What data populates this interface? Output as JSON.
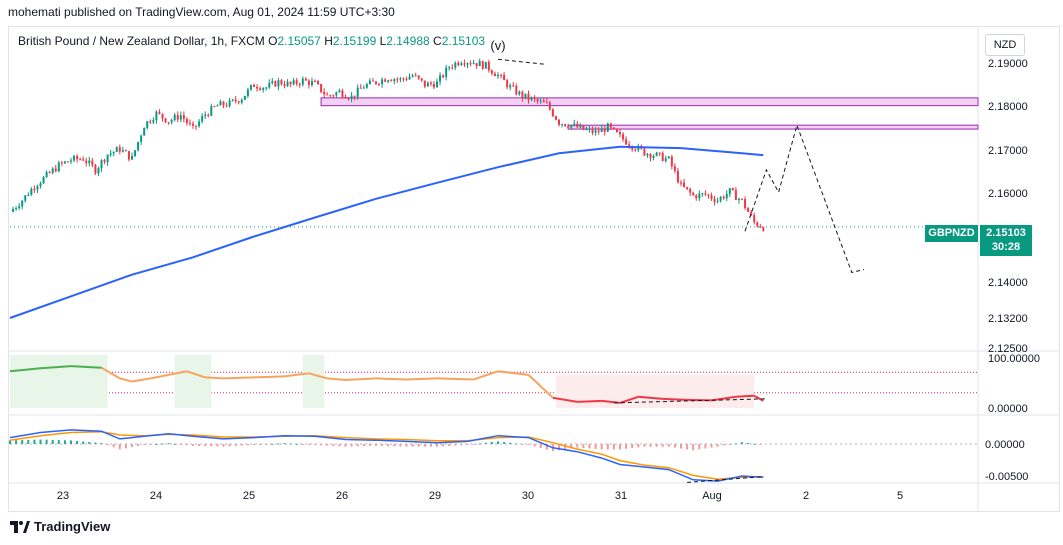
{
  "header": {
    "caption": "mohemati published on TradingView.com, Aug 01, 2024 11:59 UTC+3:30"
  },
  "legend": {
    "instrument": "British Pound / New Zealand Dollar, 1h, FXCM",
    "o_label": "O",
    "o_value": "2.15057",
    "h_label": "H",
    "h_value": "2.15199",
    "l_label": "L",
    "l_value": "2.14988",
    "c_label": "C",
    "c_value": "2.15103"
  },
  "currency": "NZD",
  "price_tag": {
    "symbol": "GBPNZD",
    "price": "2.15103",
    "countdown": "30:28"
  },
  "footer": {
    "brand": "TradingView"
  },
  "colors": {
    "up": "#089981",
    "down": "#f23645",
    "ma": "#2962ff",
    "zone_fill": "#f3d1f4",
    "zone_border": "#9c27b0",
    "osc_green": "#4caf50",
    "osc_orange": "#f7a35c",
    "osc_red": "#f23645",
    "macd_blue": "#2962ff",
    "macd_orange": "#ff9800"
  },
  "chart_data": [
    {
      "type": "candlestick",
      "title": "British Pound / New Zealand Dollar, 1h, FXCM",
      "y_ticks": [
        "2.19000",
        "2.18000",
        "2.17000",
        "2.16000",
        "2.14000",
        "2.13200",
        "2.12500"
      ],
      "x_ticks": [
        "23",
        "24",
        "25",
        "26",
        "29",
        "30",
        "31",
        "Aug",
        "2",
        "5"
      ],
      "ylim": [
        2.125,
        2.193
      ],
      "last_price": 2.15103,
      "wave_label": "(v)",
      "close_path": [
        [
          0,
          2.1545
        ],
        [
          4,
          2.1572
        ],
        [
          8,
          2.1605
        ],
        [
          12,
          2.1628
        ],
        [
          16,
          2.1652
        ],
        [
          20,
          2.1665
        ],
        [
          24,
          2.1668
        ],
        [
          28,
          2.1642
        ],
        [
          32,
          2.1678
        ],
        [
          36,
          2.169
        ],
        [
          40,
          2.1668
        ],
        [
          44,
          2.1745
        ],
        [
          48,
          2.1772
        ],
        [
          52,
          2.1755
        ],
        [
          56,
          2.1768
        ],
        [
          60,
          2.1735
        ],
        [
          64,
          2.177
        ],
        [
          68,
          2.179
        ],
        [
          72,
          2.1795
        ],
        [
          76,
          2.1808
        ],
        [
          80,
          2.1838
        ],
        [
          84,
          2.1832
        ],
        [
          88,
          2.1845
        ],
        [
          92,
          2.1838
        ],
        [
          96,
          2.1848
        ],
        [
          100,
          2.184
        ],
        [
          104,
          2.1812
        ],
        [
          108,
          2.1822
        ],
        [
          112,
          2.181
        ],
        [
          116,
          2.1835
        ],
        [
          120,
          2.1845
        ],
        [
          124,
          2.1855
        ],
        [
          128,
          2.185
        ],
        [
          132,
          2.186
        ],
        [
          136,
          2.1838
        ],
        [
          140,
          2.1842
        ],
        [
          144,
          2.188
        ],
        [
          148,
          2.1895
        ],
        [
          152,
          2.189
        ],
        [
          156,
          2.1882
        ],
        [
          160,
          2.186
        ],
        [
          164,
          2.1832
        ],
        [
          168,
          2.1812
        ],
        [
          172,
          2.1802
        ],
        [
          176,
          2.1792
        ],
        [
          180,
          2.1752
        ],
        [
          184,
          2.1745
        ],
        [
          188,
          2.1735
        ],
        [
          192,
          2.1728
        ],
        [
          196,
          2.174
        ],
        [
          200,
          2.1718
        ],
        [
          204,
          2.1698
        ],
        [
          208,
          2.1682
        ],
        [
          212,
          2.1675
        ],
        [
          216,
          2.1665
        ],
        [
          220,
          2.1605
        ],
        [
          224,
          2.1582
        ],
        [
          228,
          2.1585
        ],
        [
          232,
          2.1572
        ],
        [
          236,
          2.1592
        ],
        [
          240,
          2.157
        ],
        [
          244,
          2.152
        ],
        [
          247,
          2.151
        ]
      ],
      "moving_average": [
        [
          0,
          2.13
        ],
        [
          20,
          2.135
        ],
        [
          40,
          2.14
        ],
        [
          60,
          2.144
        ],
        [
          80,
          2.1488
        ],
        [
          100,
          2.1532
        ],
        [
          120,
          2.1575
        ],
        [
          140,
          2.1612
        ],
        [
          160,
          2.1648
        ],
        [
          180,
          2.168
        ],
        [
          200,
          2.1695
        ],
        [
          220,
          2.1692
        ],
        [
          240,
          2.168
        ],
        [
          247,
          2.1676
        ]
      ],
      "zones": [
        {
          "x_start": 102,
          "x_end": 322,
          "y_low": 2.179,
          "y_high": 2.1808
        },
        {
          "x_start": 183,
          "x_end": 322,
          "y_low": 2.1736,
          "y_high": 2.1745
        }
      ],
      "projection": [
        [
          241,
          2.15
        ],
        [
          248,
          2.1642
        ],
        [
          252,
          2.159
        ],
        [
          258,
          2.1745
        ],
        [
          276,
          2.1405
        ],
        [
          280,
          2.1412
        ]
      ]
    },
    {
      "type": "line",
      "title": "",
      "y_ticks": [
        "100.00000",
        "0.00000"
      ],
      "ylim": [
        -10,
        100
      ],
      "upper_level": 70,
      "lower_level": 30,
      "series": [
        {
          "values": [
            [
              0,
              72
            ],
            [
              10,
              78
            ],
            [
              20,
              82
            ],
            [
              30,
              79
            ],
            [
              36,
              58
            ],
            [
              40,
              52
            ],
            [
              46,
              58
            ],
            [
              52,
              65
            ],
            [
              58,
              72
            ],
            [
              64,
              60
            ],
            [
              70,
              58
            ],
            [
              80,
              60
            ],
            [
              90,
              62
            ],
            [
              98,
              68
            ],
            [
              104,
              58
            ],
            [
              110,
              55
            ],
            [
              120,
              58
            ],
            [
              130,
              56
            ],
            [
              140,
              58
            ],
            [
              152,
              56
            ],
            [
              160,
              72
            ],
            [
              170,
              65
            ],
            [
              178,
              20
            ],
            [
              186,
              12
            ],
            [
              194,
              14
            ],
            [
              200,
              10
            ],
            [
              206,
              22
            ],
            [
              214,
              18
            ],
            [
              222,
              16
            ],
            [
              230,
              15
            ],
            [
              238,
              22
            ],
            [
              244,
              24
            ],
            [
              247,
              14
            ]
          ]
        }
      ],
      "annotation_segment": [
        [
          198,
          10
        ],
        [
          248,
          18
        ]
      ]
    },
    {
      "type": "line",
      "title": "",
      "y_ticks": [
        "0.00000",
        "-0.00500"
      ],
      "ylim": [
        -0.0065,
        0.0032
      ],
      "zero_line": 0,
      "series": [
        {
          "values": [
            [
              0,
              0.001
            ],
            [
              10,
              0.0018
            ],
            [
              20,
              0.0022
            ],
            [
              30,
              0.002
            ],
            [
              36,
              0.0008
            ],
            [
              44,
              0.0012
            ],
            [
              52,
              0.0016
            ],
            [
              60,
              0.0012
            ],
            [
              70,
              0.0008
            ],
            [
              80,
              0.001
            ],
            [
              90,
              0.0013
            ],
            [
              100,
              0.0012
            ],
            [
              110,
              0.0007
            ],
            [
              120,
              0.0006
            ],
            [
              130,
              0.0004
            ],
            [
              140,
              0.0002
            ],
            [
              150,
              0.0004
            ],
            [
              160,
              0.0013
            ],
            [
              170,
              0.001
            ],
            [
              178,
              -0.0006
            ],
            [
              186,
              -0.0012
            ],
            [
              194,
              -0.0022
            ],
            [
              200,
              -0.0032
            ],
            [
              208,
              -0.0036
            ],
            [
              216,
              -0.004
            ],
            [
              224,
              -0.0056
            ],
            [
              232,
              -0.0058
            ],
            [
              240,
              -0.005
            ],
            [
              247,
              -0.0052
            ]
          ]
        },
        {
          "values": [
            [
              0,
              0.0006
            ],
            [
              10,
              0.0013
            ],
            [
              20,
              0.0018
            ],
            [
              30,
              0.0019
            ],
            [
              36,
              0.0014
            ],
            [
              44,
              0.0013
            ],
            [
              52,
              0.0015
            ],
            [
              60,
              0.0014
            ],
            [
              70,
              0.0011
            ],
            [
              80,
              0.0011
            ],
            [
              90,
              0.0012
            ],
            [
              100,
              0.0013
            ],
            [
              110,
              0.001
            ],
            [
              120,
              0.0008
            ],
            [
              130,
              0.0007
            ],
            [
              140,
              0.0005
            ],
            [
              150,
              0.0005
            ],
            [
              160,
              0.001
            ],
            [
              170,
              0.0011
            ],
            [
              178,
              0.0002
            ],
            [
              186,
              -0.0008
            ],
            [
              194,
              -0.0016
            ],
            [
              200,
              -0.0026
            ],
            [
              208,
              -0.0033
            ],
            [
              216,
              -0.0037
            ],
            [
              224,
              -0.0049
            ],
            [
              232,
              -0.0055
            ],
            [
              240,
              -0.0052
            ],
            [
              247,
              -0.0051
            ]
          ]
        }
      ],
      "annotation_segment": [
        [
          222,
          -0.006
        ],
        [
          247,
          -0.0051
        ]
      ]
    }
  ]
}
